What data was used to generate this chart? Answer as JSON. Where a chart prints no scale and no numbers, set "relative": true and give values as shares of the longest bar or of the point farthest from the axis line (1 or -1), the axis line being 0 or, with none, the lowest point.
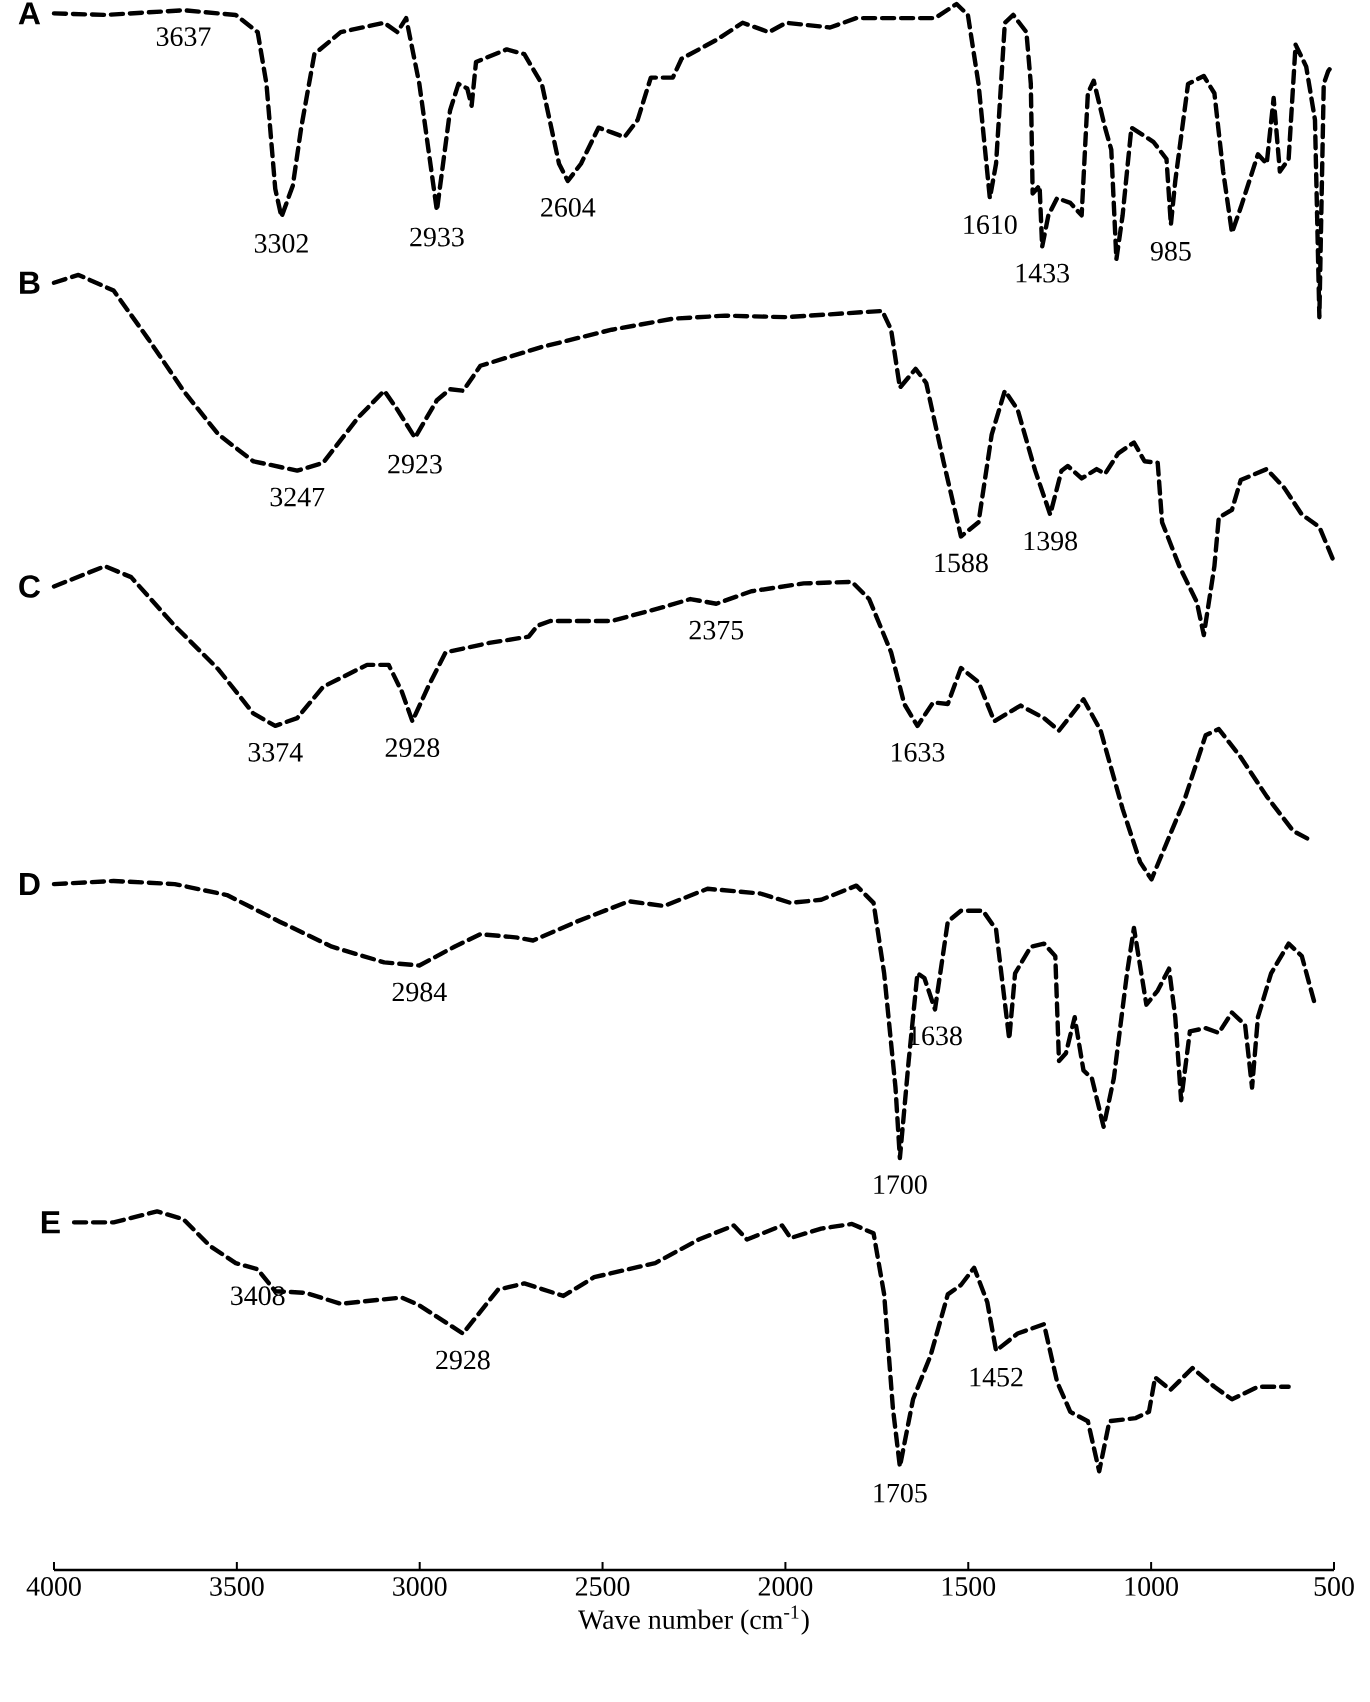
{
  "chart_data": {
    "type": "line",
    "relative": true,
    "xlabel": "Wave number (cm$^{-1}$)",
    "line_style": "dashed",
    "xlim": [
      4000,
      500
    ],
    "xticks": [
      4000,
      3500,
      3000,
      2500,
      2000,
      1500,
      1000,
      500
    ],
    "series": [
      {
        "name": "A",
        "color": "#000000",
        "x": [
          4000,
          3861,
          3646,
          3503,
          3443,
          3419,
          3395,
          3378,
          3347,
          3324,
          3288,
          3216,
          3097,
          3061,
          3037,
          3001,
          2953,
          2917,
          2894,
          2870,
          2858,
          2846,
          2762,
          2714,
          2666,
          2619,
          2595,
          2559,
          2511,
          2475,
          2440,
          2404,
          2368,
          2308,
          2284,
          2189,
          2117,
          2045,
          1998,
          1878,
          1806,
          1591,
          1532,
          1501,
          1472,
          1441,
          1424,
          1400,
          1377,
          1341,
          1329,
          1324,
          1305,
          1298,
          1281,
          1257,
          1221,
          1190,
          1173,
          1157,
          1126,
          1109,
          1095,
          1078,
          1054,
          994,
          958,
          946,
          934,
          899,
          856,
          827,
          803,
          779,
          755,
          708,
          684,
          665,
          648,
          624,
          605,
          576,
          552,
          540,
          528,
          516,
          504
        ],
        "values": [
          0.994,
          0.993,
          0.996,
          0.993,
          0.982,
          0.949,
          0.882,
          0.864,
          0.884,
          0.921,
          0.968,
          0.982,
          0.988,
          0.982,
          0.991,
          0.949,
          0.868,
          0.932,
          0.949,
          0.946,
          0.935,
          0.963,
          0.971,
          0.968,
          0.949,
          0.898,
          0.887,
          0.898,
          0.921,
          0.918,
          0.915,
          0.926,
          0.953,
          0.953,
          0.965,
          0.977,
          0.988,
          0.982,
          0.988,
          0.985,
          0.991,
          0.991,
          1.0,
          0.993,
          0.949,
          0.876,
          0.898,
          0.988,
          0.993,
          0.982,
          0.949,
          0.879,
          0.884,
          0.845,
          0.865,
          0.876,
          0.873,
          0.865,
          0.943,
          0.951,
          0.921,
          0.907,
          0.837,
          0.865,
          0.921,
          0.912,
          0.901,
          0.859,
          0.887,
          0.949,
          0.954,
          0.943,
          0.893,
          0.854,
          0.87,
          0.904,
          0.898,
          0.94,
          0.893,
          0.901,
          0.974,
          0.96,
          0.926,
          0.8,
          0.949,
          0.957,
          0.961
        ]
      },
      {
        "name": "B",
        "color": "#000000",
        "x": [
          4000,
          3933,
          3837,
          3742,
          3646,
          3550,
          3455,
          3335,
          3264,
          3168,
          3097,
          3061,
          3013,
          2953,
          2917,
          2881,
          2834,
          2666,
          2475,
          2308,
          2165,
          1998,
          1735,
          1711,
          1687,
          1644,
          1615,
          1568,
          1520,
          1472,
          1436,
          1400,
          1365,
          1317,
          1276,
          1245,
          1228,
          1190,
          1149,
          1126,
          1090,
          1047,
          1018,
          982,
          970,
          923,
          875,
          856,
          827,
          815,
          779,
          755,
          684,
          636,
          588,
          540,
          504
        ],
        "values": [
          0.822,
          0.827,
          0.817,
          0.786,
          0.753,
          0.725,
          0.708,
          0.702,
          0.707,
          0.736,
          0.753,
          0.741,
          0.723,
          0.747,
          0.754,
          0.753,
          0.769,
          0.781,
          0.792,
          0.799,
          0.801,
          0.8,
          0.804,
          0.792,
          0.755,
          0.767,
          0.758,
          0.708,
          0.66,
          0.669,
          0.725,
          0.753,
          0.741,
          0.702,
          0.674,
          0.702,
          0.705,
          0.697,
          0.703,
          0.7,
          0.713,
          0.72,
          0.708,
          0.707,
          0.669,
          0.641,
          0.618,
          0.597,
          0.641,
          0.672,
          0.677,
          0.696,
          0.703,
          0.691,
          0.674,
          0.666,
          0.646
        ]
      },
      {
        "name": "C",
        "color": "#000000",
        "x": [
          4000,
          3861,
          3789,
          3670,
          3550,
          3455,
          3395,
          3335,
          3264,
          3144,
          3085,
          3049,
          3020,
          2977,
          2929,
          2810,
          2702,
          2678,
          2643,
          2475,
          2332,
          2260,
          2189,
          2093,
          1950,
          1818,
          1771,
          1711,
          1675,
          1639,
          1596,
          1556,
          1520,
          1472,
          1429,
          1357,
          1293,
          1252,
          1185,
          1138,
          1078,
          1030,
          999,
          910,
          851,
          815,
          755,
          684,
          612,
          564
        ],
        "values": [
          0.628,
          0.641,
          0.634,
          0.603,
          0.575,
          0.547,
          0.539,
          0.544,
          0.564,
          0.578,
          0.578,
          0.561,
          0.542,
          0.564,
          0.586,
          0.592,
          0.596,
          0.603,
          0.606,
          0.606,
          0.615,
          0.62,
          0.617,
          0.625,
          0.63,
          0.631,
          0.62,
          0.586,
          0.553,
          0.539,
          0.554,
          0.553,
          0.576,
          0.567,
          0.542,
          0.552,
          0.544,
          0.536,
          0.556,
          0.536,
          0.486,
          0.452,
          0.441,
          0.491,
          0.533,
          0.537,
          0.519,
          0.494,
          0.472,
          0.466
        ]
      },
      {
        "name": "D",
        "color": "#000000",
        "x": [
          4000,
          3837,
          3670,
          3527,
          3383,
          3240,
          3097,
          3001,
          2905,
          2834,
          2738,
          2690,
          2571,
          2428,
          2332,
          2213,
          2069,
          1986,
          1902,
          1806,
          1759,
          1730,
          1699,
          1687,
          1663,
          1639,
          1620,
          1591,
          1556,
          1520,
          1460,
          1424,
          1388,
          1372,
          1329,
          1293,
          1262,
          1252,
          1233,
          1209,
          1185,
          1162,
          1130,
          1102,
          1066,
          1047,
          1013,
          982,
          951,
          934,
          918,
          894,
          851,
          815,
          779,
          743,
          724,
          708,
          672,
          624,
          588,
          552
        ],
        "values": [
          0.438,
          0.44,
          0.438,
          0.431,
          0.414,
          0.398,
          0.388,
          0.386,
          0.398,
          0.406,
          0.404,
          0.402,
          0.414,
          0.427,
          0.424,
          0.435,
          0.432,
          0.426,
          0.428,
          0.437,
          0.426,
          0.381,
          0.308,
          0.263,
          0.325,
          0.381,
          0.378,
          0.358,
          0.414,
          0.421,
          0.421,
          0.409,
          0.339,
          0.381,
          0.398,
          0.4,
          0.392,
          0.325,
          0.33,
          0.353,
          0.319,
          0.314,
          0.283,
          0.314,
          0.381,
          0.41,
          0.361,
          0.37,
          0.384,
          0.353,
          0.3,
          0.344,
          0.346,
          0.343,
          0.356,
          0.348,
          0.308,
          0.353,
          0.381,
          0.4,
          0.392,
          0.361
        ]
      },
      {
        "name": "E",
        "color": "#000000",
        "x": [
          3945,
          3837,
          3718,
          3646,
          3574,
          3503,
          3443,
          3395,
          3312,
          3216,
          3049,
          3001,
          2882,
          2786,
          2714,
          2607,
          2523,
          2356,
          2237,
          2141,
          2105,
          2009,
          1986,
          1902,
          1818,
          1759,
          1730,
          1706,
          1687,
          1651,
          1603,
          1556,
          1520,
          1484,
          1448,
          1424,
          1365,
          1293,
          1257,
          1221,
          1173,
          1142,
          1114,
          1042,
          1006,
          989,
          947,
          887,
          827,
          779,
          708,
          624
        ],
        "values": [
          0.222,
          0.222,
          0.229,
          0.224,
          0.207,
          0.196,
          0.192,
          0.178,
          0.177,
          0.17,
          0.174,
          0.169,
          0.151,
          0.179,
          0.183,
          0.175,
          0.187,
          0.196,
          0.211,
          0.22,
          0.211,
          0.22,
          0.212,
          0.218,
          0.221,
          0.215,
          0.176,
          0.103,
          0.066,
          0.109,
          0.137,
          0.176,
          0.182,
          0.193,
          0.171,
          0.14,
          0.151,
          0.157,
          0.12,
          0.101,
          0.095,
          0.063,
          0.095,
          0.097,
          0.101,
          0.123,
          0.115,
          0.129,
          0.117,
          0.109,
          0.117,
          0.117
        ]
      }
    ],
    "annotations": [
      {
        "text": "3637",
        "x": 3646,
        "y": 0.996
      },
      {
        "text": "3302",
        "x": 3378,
        "y": 0.864
      },
      {
        "text": "2933",
        "x": 2953,
        "y": 0.868
      },
      {
        "text": "2604",
        "x": 2595,
        "y": 0.887
      },
      {
        "text": "1610",
        "x": 1441,
        "y": 0.876
      },
      {
        "text": "1433",
        "x": 1298,
        "y": 0.845
      },
      {
        "text": "985",
        "x": 946,
        "y": 0.859
      },
      {
        "text": "2923",
        "x": 3013,
        "y": 0.723
      },
      {
        "text": "3247",
        "x": 3335,
        "y": 0.702
      },
      {
        "text": "1398",
        "x": 1276,
        "y": 0.674
      },
      {
        "text": "1588",
        "x": 1520,
        "y": 0.66
      },
      {
        "text": "2375",
        "x": 2189,
        "y": 0.617
      },
      {
        "text": "3374",
        "x": 3395,
        "y": 0.539
      },
      {
        "text": "2928",
        "x": 3020,
        "y": 0.542
      },
      {
        "text": "1633",
        "x": 1639,
        "y": 0.539
      },
      {
        "text": "2984",
        "x": 3001,
        "y": 0.386
      },
      {
        "text": "1638",
        "x": 1591,
        "y": 0.358
      },
      {
        "text": "1700",
        "x": 1687,
        "y": 0.263
      },
      {
        "text": "3408",
        "x": 3443,
        "y": 0.192
      },
      {
        "text": "2928",
        "x": 2882,
        "y": 0.151
      },
      {
        "text": "1452",
        "x": 1424,
        "y": 0.14
      },
      {
        "text": "1705",
        "x": 1687,
        "y": 0.066
      }
    ]
  }
}
